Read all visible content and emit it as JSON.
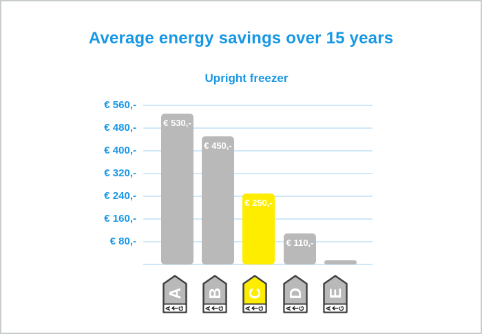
{
  "page": {
    "title": "Average energy savings over 15 years",
    "subtitle": "Upright freezer"
  },
  "colors": {
    "accent_blue": "#1897e4",
    "bar_gray": "#b9b9b9",
    "highlight_yellow": "#ffed00",
    "gridline": "#cfe8f9",
    "tag_border": "#3d3f40",
    "bar_value_text": "#ffffff",
    "tag_letter_text": "#ffffff",
    "scale_text": "#1a1a1a"
  },
  "chart_data": {
    "type": "bar",
    "title": "Average energy savings over 15 years",
    "subtitle": "Upright freezer",
    "categories": [
      "A",
      "B",
      "C",
      "D",
      "E"
    ],
    "values": [
      530,
      450,
      250,
      110,
      15
    ],
    "value_labels": [
      "€ 530,-",
      "€ 450,-",
      "€ 250,-",
      "€ 110,-",
      ""
    ],
    "bar_colors": [
      "#b9b9b9",
      "#b9b9b9",
      "#ffed00",
      "#b9b9b9",
      "#b9b9b9"
    ],
    "y_ticks": [
      560,
      480,
      400,
      320,
      240,
      160,
      80
    ],
    "y_tick_labels": [
      "€ 560,-",
      "€ 480,-",
      "€ 400,-",
      "€ 320,-",
      "€ 240,-",
      "€ 160,-",
      "€ 80,-"
    ],
    "ylim": [
      0,
      560
    ],
    "xlabel": "",
    "ylabel": "",
    "grid": "horizontal",
    "legend": "none",
    "x_axis_label_style": "eu-energy-class-tag",
    "energy_scale": {
      "from": "A",
      "to": "G",
      "arrow_glyph": "←"
    }
  }
}
